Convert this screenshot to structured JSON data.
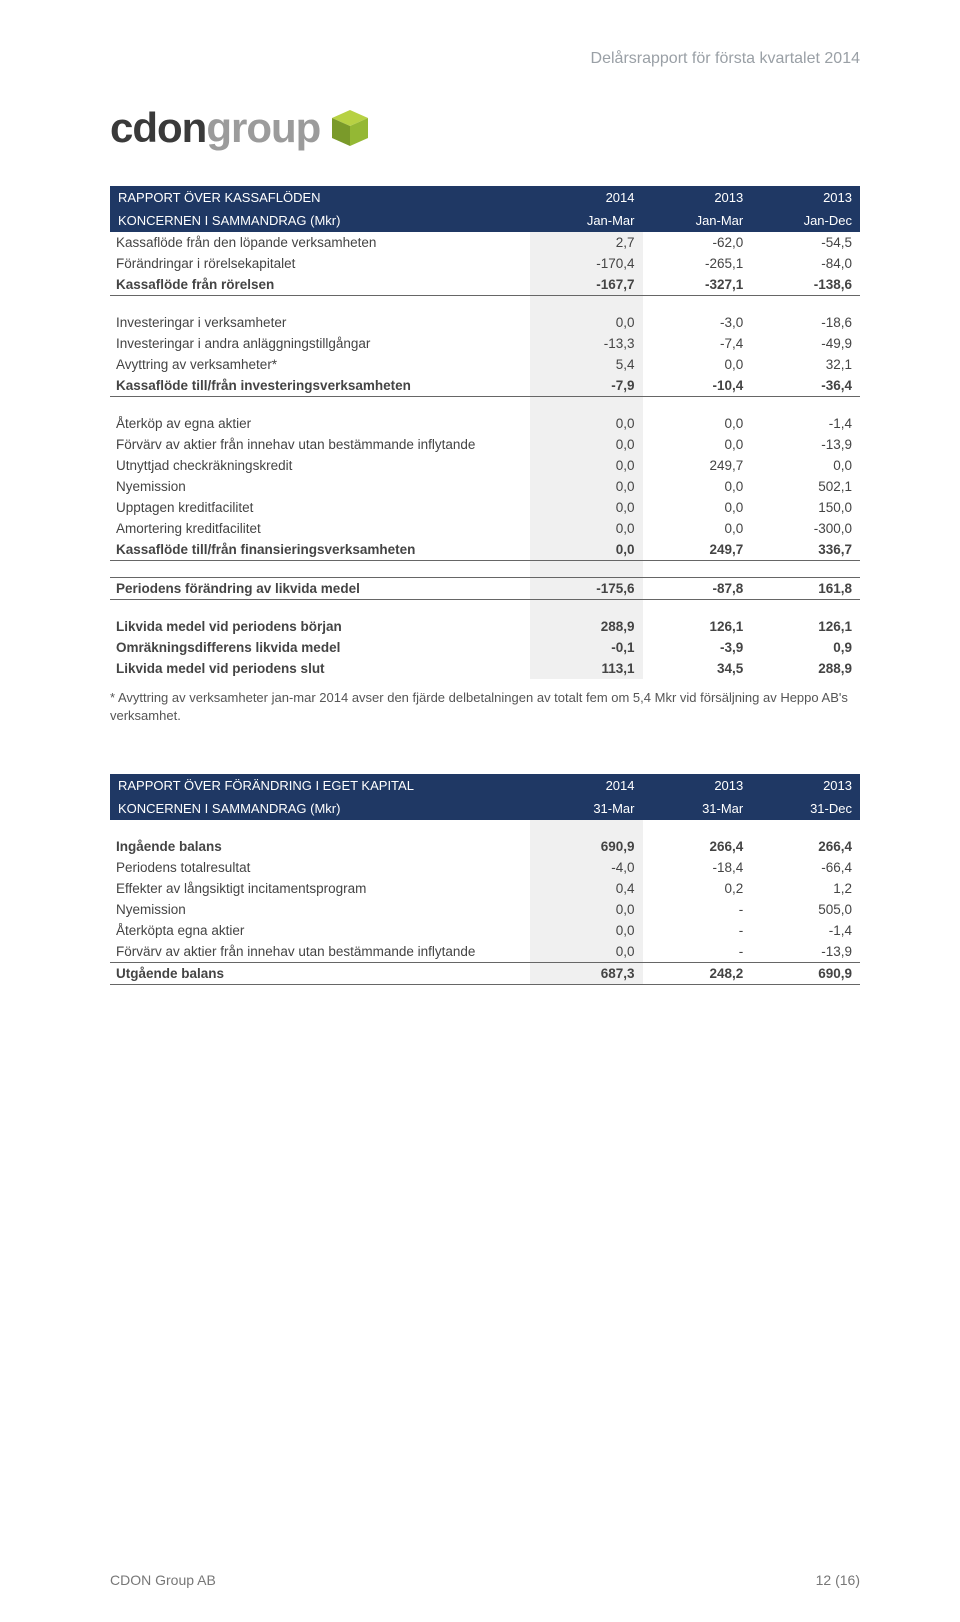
{
  "page_header": "Delårsrapport för första kvartalet 2014",
  "logo": {
    "part1": "cdon",
    "part2": "group"
  },
  "table1": {
    "header_title1": "RAPPORT ÖVER KASSAFLÖDEN",
    "header_title2": "KONCERNEN I SAMMANDRAG (Mkr)",
    "cols_top": [
      "2014",
      "2013",
      "2013"
    ],
    "cols_bot": [
      "Jan-Mar",
      "Jan-Mar",
      "Jan-Dec"
    ],
    "rows1": [
      {
        "l": "Kassaflöde från den löpande verksamheten",
        "v": [
          "2,7",
          "-62,0",
          "-54,5"
        ]
      },
      {
        "l": "Förändringar i rörelsekapitalet",
        "v": [
          "-170,4",
          "-265,1",
          "-84,0"
        ]
      }
    ],
    "sum1": {
      "l": "Kassaflöde från rörelsen",
      "v": [
        "-167,7",
        "-327,1",
        "-138,6"
      ]
    },
    "rows2": [
      {
        "l": "Investeringar i verksamheter",
        "v": [
          "0,0",
          "-3,0",
          "-18,6"
        ]
      },
      {
        "l": "Investeringar i andra anläggningstillgångar",
        "v": [
          "-13,3",
          "-7,4",
          "-49,9"
        ]
      },
      {
        "l": "Avyttring av verksamheter*",
        "v": [
          "5,4",
          "0,0",
          "32,1"
        ]
      }
    ],
    "sum2": {
      "l": "Kassaflöde till/från investeringsverksamheten",
      "v": [
        "-7,9",
        "-10,4",
        "-36,4"
      ]
    },
    "rows3": [
      {
        "l": "Återköp av egna aktier",
        "v": [
          "0,0",
          "0,0",
          "-1,4"
        ]
      },
      {
        "l": "Förvärv av aktier från innehav utan bestämmande inflytande",
        "v": [
          "0,0",
          "0,0",
          "-13,9"
        ]
      },
      {
        "l": "Utnyttjad checkräkningskredit",
        "v": [
          "0,0",
          "249,7",
          "0,0"
        ]
      },
      {
        "l": "Nyemission",
        "v": [
          "0,0",
          "0,0",
          "502,1"
        ]
      },
      {
        "l": "Upptagen kreditfacilitet",
        "v": [
          "0,0",
          "0,0",
          "150,0"
        ]
      },
      {
        "l": "Amortering kreditfacilitet",
        "v": [
          "0,0",
          "0,0",
          "-300,0"
        ]
      }
    ],
    "sum3": {
      "l": "Kassaflöde till/från finansieringsverksamheten",
      "v": [
        "0,0",
        "249,7",
        "336,7"
      ]
    },
    "sum4": {
      "l": "Periodens förändring av likvida medel",
      "v": [
        "-175,6",
        "-87,8",
        "161,8"
      ]
    },
    "rows4": [
      {
        "l": "Likvida medel vid periodens början",
        "v": [
          "288,9",
          "126,1",
          "126,1"
        ]
      },
      {
        "l": "Omräkningsdifferens likvida medel",
        "v": [
          "-0,1",
          "-3,9",
          "0,9"
        ]
      },
      {
        "l": "Likvida medel vid periodens slut",
        "v": [
          "113,1",
          "34,5",
          "288,9"
        ]
      }
    ]
  },
  "footnote": "* Avyttring av verksamheter jan-mar 2014 avser den fjärde delbetalningen av totalt fem om 5,4 Mkr vid försäljning av Heppo AB's verksamhet.",
  "table2": {
    "header_title1": "RAPPORT ÖVER FÖRÄNDRING I EGET KAPITAL",
    "header_title2": "KONCERNEN I SAMMANDRAG (Mkr)",
    "cols_top": [
      "2014",
      "2013",
      "2013"
    ],
    "cols_bot": [
      "31-Mar",
      "31-Mar",
      "31-Dec"
    ],
    "rows": [
      {
        "l": "Ingående balans",
        "v": [
          "690,9",
          "266,4",
          "266,4"
        ],
        "bold": true
      },
      {
        "l": "Periodens totalresultat",
        "v": [
          "-4,0",
          "-18,4",
          "-66,4"
        ]
      },
      {
        "l": "Effekter av långsiktigt incitamentsprogram",
        "v": [
          "0,4",
          "0,2",
          "1,2"
        ]
      },
      {
        "l": "Nyemission",
        "v": [
          "0,0",
          "-",
          "505,0"
        ]
      },
      {
        "l": "Återköpta egna aktier",
        "v": [
          "0,0",
          "-",
          "-1,4"
        ]
      },
      {
        "l": "Förvärv av aktier från innehav utan bestämmande inflytande",
        "v": [
          "0,0",
          "-",
          "-13,9"
        ]
      }
    ],
    "sum": {
      "l": "Utgående balans",
      "v": [
        "687,3",
        "248,2",
        "690,9"
      ]
    }
  },
  "footer": {
    "left": "CDON Group AB",
    "right": "12 (16)"
  },
  "colors": {
    "header_bg": "#1f3864",
    "shade": "#f0f0f0",
    "cube_light": "#b7d143",
    "cube_dark": "#7a9a2a"
  }
}
